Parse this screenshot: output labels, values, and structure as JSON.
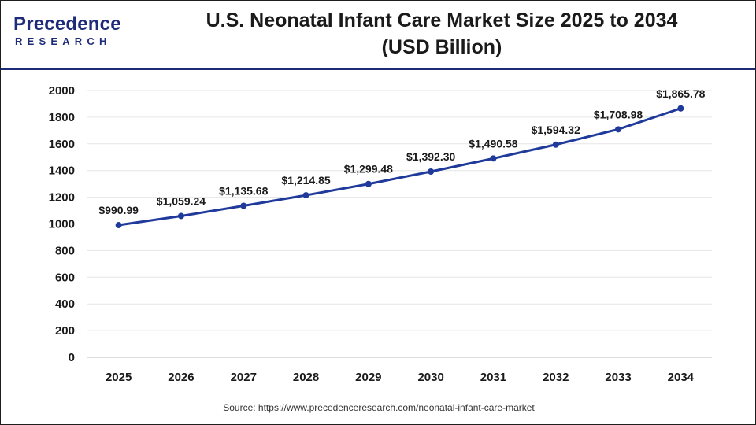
{
  "brand": {
    "name": "Precedence",
    "sub": "RESEARCH",
    "color": "#1e2b78"
  },
  "title_line1": "U.S. Neonatal Infant Care Market Size 2025 to 2034",
  "title_line2": "(USD Billion)",
  "source": "Source: https://www.precedenceresearch.com/neonatal-infant-care-market",
  "chart_data": {
    "type": "line",
    "title": "U.S. Neonatal Infant Care Market Size 2025 to 2034 (USD Billion)",
    "xlabel": "",
    "ylabel": "",
    "categories": [
      "2025",
      "2026",
      "2027",
      "2028",
      "2029",
      "2030",
      "2031",
      "2032",
      "2033",
      "2034"
    ],
    "series": [
      {
        "values": [
          990.99,
          1059.24,
          1135.68,
          1214.85,
          1299.48,
          1392.3,
          1490.58,
          1594.32,
          1708.98,
          1865.78
        ],
        "labels": [
          "$990.99",
          "$1,059.24",
          "$1,135.68",
          "$1,214.85",
          "$1,299.48",
          "$1,392.30",
          "$1,490.58",
          "$1,594.32",
          "$1,708.98",
          "$1,865.78"
        ],
        "color": "#1f3a9a"
      }
    ],
    "ylim": [
      0,
      2000
    ],
    "yticks": [
      0,
      200,
      400,
      600,
      800,
      1000,
      1200,
      1400,
      1600,
      1800,
      2000
    ],
    "grid": true,
    "legend": "none"
  }
}
